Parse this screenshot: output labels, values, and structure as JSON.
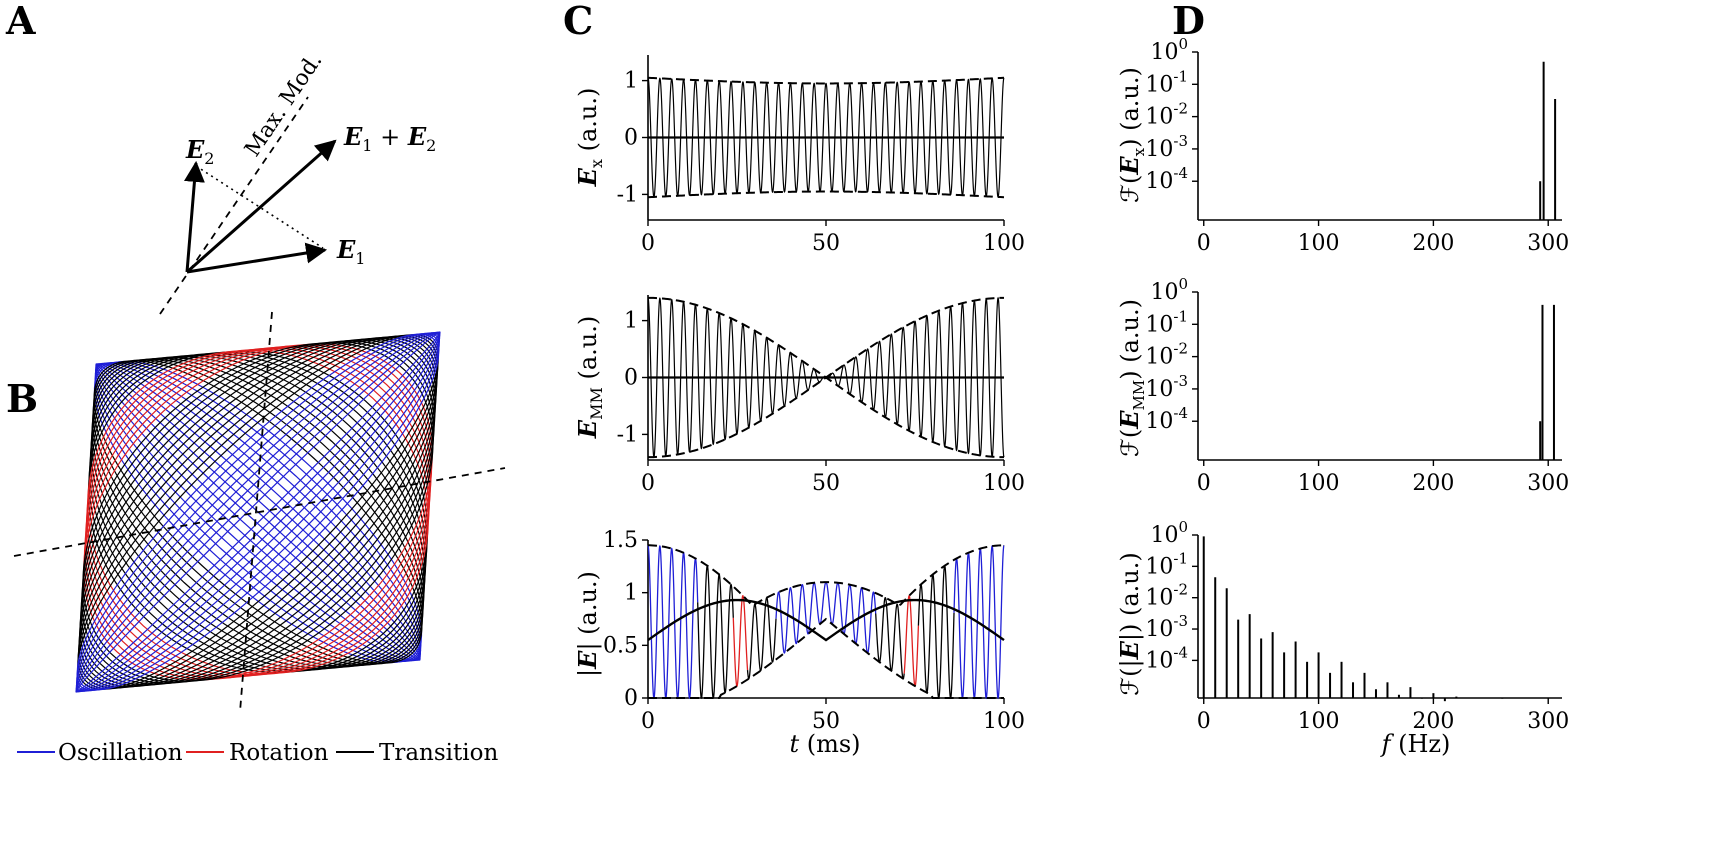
{
  "panels": {
    "A": "A",
    "B": "B",
    "C": "C",
    "D": "D"
  },
  "panel_a": {
    "labels": {
      "e1": "E",
      "e1_sub": "1",
      "e2": "E",
      "e2_sub": "2",
      "sum": "E",
      "sum_sub1": "1",
      "sum_plus": " + ",
      "sum2": "E",
      "sum_sub2": "2",
      "maxmod": "Max. Mod."
    }
  },
  "panel_b": {
    "legend": [
      {
        "label": "Oscillation",
        "color": "#1f1fd6"
      },
      {
        "label": "Rotation",
        "color": "#e02020"
      },
      {
        "label": "Transition",
        "color": "#000000"
      }
    ]
  },
  "panel_c": {
    "xlabel_var": "t",
    "xlabel_unit": " (ms)",
    "ylabels": {
      "ex": {
        "var": "E",
        "sub": "x",
        "unit": " (a.u.)"
      },
      "emm": {
        "var": "E",
        "sub": "MM",
        "unit": " (a.u.)"
      },
      "abs": {
        "pre": "|",
        "var": "E",
        "post": "|",
        "unit": " (a.u.)"
      }
    }
  },
  "panel_d": {
    "xlabel_var": "f",
    "xlabel_unit": " (Hz)",
    "ylabels": {
      "ex": {
        "pre": "ℱ(",
        "var": "E",
        "sub": "x",
        "post": ") (a.u.)"
      },
      "emm": {
        "pre": "ℱ(",
        "var": "E",
        "sub": "MM",
        "post": ") (a.u.)"
      },
      "abs": {
        "pre": "ℱ(|",
        "var": "E",
        "post": "|) (a.u.)"
      }
    }
  },
  "chart_data": [
    {
      "type": "line",
      "id": "C1",
      "series": [
        {
          "name": "E_x",
          "description": "oscillation at ~300 Hz, envelope ±1.05 dipping to ~0.95 mid-window"
        }
      ],
      "x": {
        "min": 0,
        "max": 100,
        "ticks": [
          0,
          50,
          100
        ]
      },
      "ylim": [
        -1.45,
        1.45
      ],
      "yticks": [
        -1,
        0,
        1
      ],
      "beat_hz": 300
    },
    {
      "type": "line",
      "id": "C2",
      "series": [
        {
          "name": "E_MM",
          "description": "oscillation with beating envelope |1.4 cos(pi t/100)|, node at t=50"
        }
      ],
      "x": {
        "min": 0,
        "max": 100,
        "ticks": [
          0,
          50,
          100
        ]
      },
      "ylim": [
        -1.45,
        1.45
      ],
      "yticks": [
        -1,
        0,
        1
      ]
    },
    {
      "type": "line",
      "id": "C3",
      "x": {
        "min": 0,
        "max": 100,
        "ticks": [
          0,
          50,
          100
        ]
      },
      "ylim": [
        0,
        1.5
      ],
      "yticks": [
        0,
        0.5,
        1,
        1.5
      ],
      "ytick_labels": [
        "0",
        "0.5",
        "1",
        "1.5"
      ],
      "segments": [
        {
          "mode": "Oscillation",
          "t": [
            [
              0,
              14
            ],
            [
              36,
              64
            ],
            [
              86,
              100
            ]
          ]
        },
        {
          "mode": "Rotation",
          "t": [
            [
              24,
              28
            ],
            [
              72,
              76
            ]
          ]
        },
        {
          "mode": "Transition",
          "t": [
            [
              14,
              24
            ],
            [
              28,
              36
            ],
            [
              64,
              72
            ],
            [
              76,
              86
            ]
          ]
        }
      ]
    },
    {
      "type": "bar",
      "id": "D1",
      "scale": "log",
      "x": {
        "min": -5,
        "max": 312,
        "ticks": [
          0,
          100,
          200,
          300
        ]
      },
      "ylim_exp": [
        -5.2,
        0
      ],
      "ytick_exps": [
        0,
        -1,
        -2,
        -3,
        -4
      ],
      "peaks": [
        {
          "f": 293,
          "v": 0.0001
        },
        {
          "f": 296,
          "v": 0.5
        },
        {
          "f": 306,
          "v": 0.035
        }
      ]
    },
    {
      "type": "bar",
      "id": "D2",
      "scale": "log",
      "x": {
        "min": -5,
        "max": 312,
        "ticks": [
          0,
          100,
          200,
          300
        ]
      },
      "ylim_exp": [
        -5.2,
        0
      ],
      "ytick_exps": [
        0,
        -1,
        -2,
        -3,
        -4
      ],
      "peaks": [
        {
          "f": 293,
          "v": 0.0001
        },
        {
          "f": 295,
          "v": 0.4
        },
        {
          "f": 305,
          "v": 0.4
        }
      ]
    },
    {
      "type": "bar",
      "id": "D3",
      "scale": "log",
      "x": {
        "min": -5,
        "max": 312,
        "ticks": [
          0,
          100,
          200,
          300
        ]
      },
      "ylim_exp": [
        -5.2,
        0
      ],
      "ytick_exps": [
        0,
        -1,
        -2,
        -3,
        -4
      ],
      "peaks": [
        {
          "f": 0,
          "v": 0.9
        },
        {
          "f": 10,
          "v": 0.045
        },
        {
          "f": 20,
          "v": 0.02
        },
        {
          "f": 30,
          "v": 0.002
        },
        {
          "f": 40,
          "v": 0.003
        },
        {
          "f": 50,
          "v": 0.0005
        },
        {
          "f": 60,
          "v": 0.0008
        },
        {
          "f": 70,
          "v": 0.00018
        },
        {
          "f": 80,
          "v": 0.0004
        },
        {
          "f": 90,
          "v": 9e-05
        },
        {
          "f": 100,
          "v": 0.00018
        },
        {
          "f": 110,
          "v": 4e-05
        },
        {
          "f": 120,
          "v": 9e-05
        },
        {
          "f": 130,
          "v": 2e-05
        },
        {
          "f": 140,
          "v": 4e-05
        },
        {
          "f": 150,
          "v": 1.2e-05
        },
        {
          "f": 160,
          "v": 2e-05
        },
        {
          "f": 170,
          "v": 8e-06
        },
        {
          "f": 180,
          "v": 1.4e-05
        },
        {
          "f": 190,
          "v": 6e-06
        },
        {
          "f": 200,
          "v": 9e-06
        },
        {
          "f": 210,
          "v": 5e-06
        },
        {
          "f": 220,
          "v": 7e-06
        },
        {
          "f": 240,
          "v": 6.5e-06
        },
        {
          "f": 260,
          "v": 6e-06
        },
        {
          "f": 280,
          "v": 6.5e-06
        },
        {
          "f": 300,
          "v": 6.3e-06
        },
        {
          "f": 310,
          "v": 6.5e-06
        }
      ]
    }
  ]
}
